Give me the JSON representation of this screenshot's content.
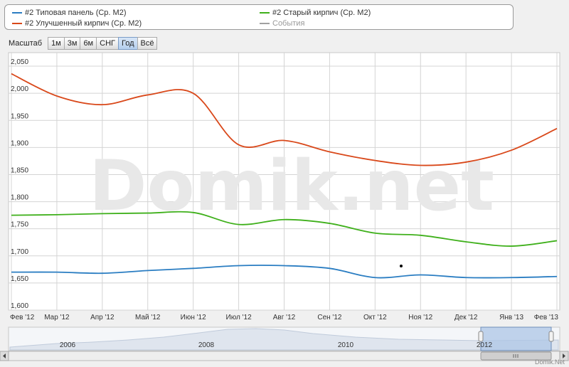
{
  "legend": {
    "items": [
      {
        "label": "#2 Типовая панель (Ср. М2)",
        "color": "#2a7dc2"
      },
      {
        "label": "#2 Старый кирпич (Ср. М2)",
        "color": "#3fb01b"
      },
      {
        "label": "#2 Улучшенный кирпич (Ср. М2)",
        "color": "#d9481a"
      },
      {
        "label": "События",
        "color": "#a0a0a0"
      }
    ]
  },
  "zoom": {
    "label": "Масштаб",
    "buttons": [
      "1м",
      "3м",
      "6м",
      "СНГ",
      "Год",
      "Всё"
    ],
    "active": "Год"
  },
  "watermark": "Domik.net",
  "credit": "Domik.Net",
  "chart_data": {
    "type": "line",
    "y_ticks": [
      "1,600",
      "1,650",
      "1,700",
      "1,750",
      "1,800",
      "1,850",
      "1,900",
      "1,950",
      "2,000",
      "2,050"
    ],
    "ylim": [
      1600,
      2075
    ],
    "x_ticks": [
      "Фев '12",
      "Мар '12",
      "Апр '12",
      "Май '12",
      "Июн '12",
      "Июл '12",
      "Авг '12",
      "Сен '12",
      "Окт '12",
      "Ноя '12",
      "Дек '12",
      "Янв '13",
      "Фев '13"
    ],
    "x": [
      "Фев '12",
      "Мар '12",
      "Апр '12",
      "Май '12",
      "Июн '12",
      "Июл '12",
      "Авг '12",
      "Сен '12",
      "Окт '12",
      "Ноя '12",
      "Дек '12",
      "Янв '13",
      "Фев '13"
    ],
    "series": [
      {
        "name": "#2 Улучшенный кирпич (Ср. М2)",
        "color": "#d9481a",
        "values": [
          2036,
          1995,
          1979,
          1997,
          2000,
          1905,
          1913,
          1892,
          1876,
          1867,
          1873,
          1895,
          1935
        ]
      },
      {
        "name": "#2 Старый кирпич (Ср. М2)",
        "color": "#3fb01b",
        "values": [
          1775,
          1776,
          1778,
          1779,
          1780,
          1758,
          1767,
          1760,
          1742,
          1738,
          1726,
          1718,
          1728
        ]
      },
      {
        "name": "#2 Типовая панель (Ср. М2)",
        "color": "#2a7dc2",
        "values": [
          1670,
          1670,
          1668,
          1673,
          1677,
          1682,
          1682,
          1677,
          1660,
          1665,
          1660,
          1660,
          1662
        ]
      }
    ],
    "grid": true,
    "navigator": {
      "labels": [
        "2006",
        "2008",
        "2010",
        "2012"
      ]
    }
  }
}
